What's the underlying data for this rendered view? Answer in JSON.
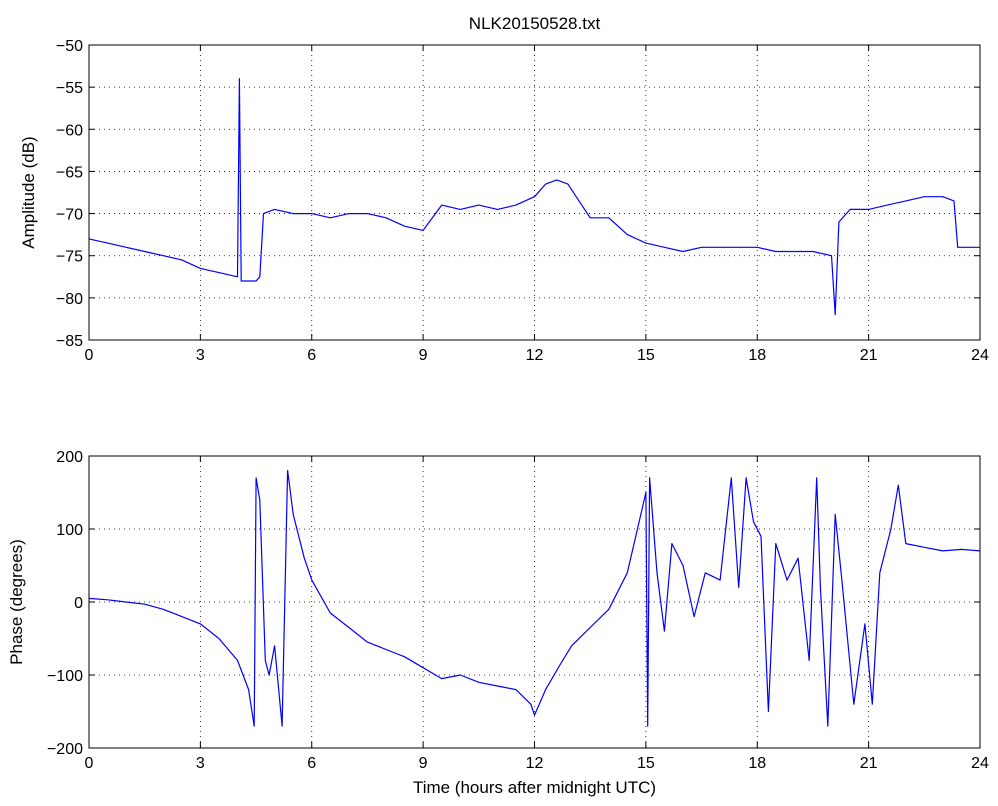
{
  "chart_data": [
    {
      "type": "line",
      "title": "NLK20150528.txt",
      "xlabel": "",
      "ylabel": "Amplitude (dB)",
      "xlim": [
        0,
        24
      ],
      "ylim": [
        -85,
        -50
      ],
      "xticks": [
        0,
        3,
        6,
        9,
        12,
        15,
        18,
        21,
        24
      ],
      "yticks": [
        -85,
        -80,
        -75,
        -70,
        -65,
        -60,
        -55,
        -50
      ],
      "grid": true,
      "color": "#0000ff",
      "series": [
        {
          "x": [
            0,
            0.5,
            1,
            1.5,
            2,
            2.5,
            3,
            3.5,
            4,
            4.05,
            4.1,
            4.5,
            4.6,
            4.7,
            5,
            5.5,
            6,
            6.5,
            7,
            7.5,
            8,
            8.5,
            9,
            9.5,
            10,
            10.5,
            11,
            11.5,
            12,
            12.3,
            12.6,
            12.9,
            13.2,
            13.5,
            14,
            14.5,
            15,
            15.5,
            16,
            16.5,
            17,
            17.5,
            18,
            18.5,
            19,
            19.5,
            20,
            20.1,
            20.2,
            20.5,
            21,
            21.5,
            22,
            22.5,
            23,
            23.3,
            23.4,
            24
          ],
          "y": [
            -73,
            -73.5,
            -74,
            -74.5,
            -75,
            -75.5,
            -76.5,
            -77,
            -77.5,
            -54,
            -78,
            -78,
            -77.5,
            -70,
            -69.5,
            -70,
            -70,
            -70.5,
            -70,
            -70,
            -70.5,
            -71.5,
            -72,
            -69,
            -69.5,
            -69,
            -69.5,
            -69,
            -68,
            -66.5,
            -66,
            -66.5,
            -68.5,
            -70.5,
            -70.5,
            -72.5,
            -73.5,
            -74,
            -74.5,
            -74,
            -74,
            -74,
            -74,
            -74.5,
            -74.5,
            -74.5,
            -75,
            -82,
            -71,
            -69.5,
            -69.5,
            -69,
            -68.5,
            -68,
            -68,
            -68.5,
            -74,
            -74
          ]
        }
      ]
    },
    {
      "type": "line",
      "title": "",
      "xlabel": "Time (hours after midnight UTC)",
      "ylabel": "Phase (degrees)",
      "xlim": [
        0,
        24
      ],
      "ylim": [
        -200,
        200
      ],
      "xticks": [
        0,
        3,
        6,
        9,
        12,
        15,
        18,
        21,
        24
      ],
      "yticks": [
        -200,
        -100,
        0,
        100,
        200
      ],
      "grid": true,
      "color": "#0000ff",
      "series": [
        {
          "x": [
            0,
            0.5,
            1,
            1.5,
            2,
            2.5,
            3,
            3.5,
            4,
            4.3,
            4.45,
            4.5,
            4.6,
            4.75,
            4.85,
            5.0,
            5.2,
            5.35,
            5.4,
            5.5,
            5.8,
            6,
            6.5,
            7,
            7.5,
            8,
            8.5,
            9,
            9.5,
            10,
            10.5,
            11,
            11.5,
            11.9,
            12,
            12.3,
            12.7,
            13,
            13.5,
            14,
            14.5,
            15,
            15.05,
            15.1,
            15.3,
            15.5,
            15.7,
            16,
            16.3,
            16.6,
            17,
            17.3,
            17.5,
            17.7,
            17.9,
            18.1,
            18.3,
            18.5,
            18.8,
            19.1,
            19.4,
            19.6,
            19.7,
            19.9,
            20.1,
            20.3,
            20.6,
            20.9,
            21.1,
            21.3,
            21.6,
            21.8,
            22,
            22.5,
            23,
            23.5,
            24
          ],
          "y": [
            5,
            3,
            0,
            -3,
            -10,
            -20,
            -30,
            -50,
            -80,
            -120,
            -170,
            170,
            140,
            -80,
            -100,
            -60,
            -170,
            180,
            160,
            120,
            60,
            30,
            -15,
            -35,
            -55,
            -65,
            -75,
            -90,
            -105,
            -100,
            -110,
            -115,
            -120,
            -140,
            -155,
            -120,
            -85,
            -60,
            -35,
            -10,
            40,
            150,
            -170,
            170,
            40,
            -40,
            80,
            50,
            -20,
            40,
            30,
            170,
            20,
            170,
            110,
            90,
            -150,
            80,
            30,
            60,
            -80,
            170,
            20,
            -170,
            120,
            20,
            -140,
            -30,
            -140,
            40,
            100,
            160,
            80,
            75,
            70,
            72,
            70
          ]
        }
      ]
    }
  ]
}
